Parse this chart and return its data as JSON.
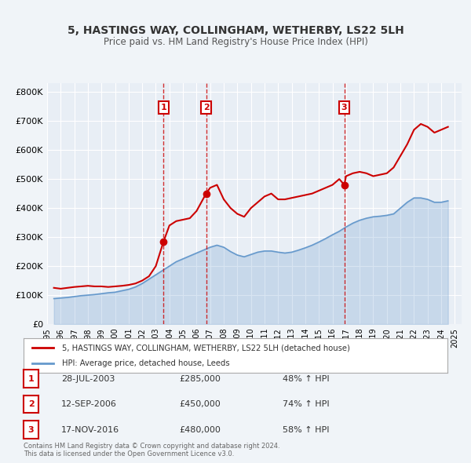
{
  "title": "5, HASTINGS WAY, COLLINGHAM, WETHERBY, LS22 5LH",
  "subtitle": "Price paid vs. HM Land Registry's House Price Index (HPI)",
  "background_color": "#f0f4f8",
  "plot_bg_color": "#e8eef5",
  "legend_line1": "5, HASTINGS WAY, COLLINGHAM, WETHERBY, LS22 5LH (detached house)",
  "legend_line2": "HPI: Average price, detached house, Leeds",
  "red_color": "#cc0000",
  "blue_color": "#6699cc",
  "transactions": [
    {
      "label": "1",
      "date": "28-JUL-2003",
      "year": 2003.57,
      "price": 285000,
      "pct": "48%",
      "dir": "↑"
    },
    {
      "label": "2",
      "date": "12-SEP-2006",
      "year": 2006.7,
      "price": 450000,
      "pct": "74%",
      "dir": "↑"
    },
    {
      "label": "3",
      "date": "17-NOV-2016",
      "year": 2016.87,
      "price": 480000,
      "pct": "58%",
      "dir": "↑"
    }
  ],
  "red_line": {
    "years": [
      1995.5,
      1996,
      1996.5,
      1997,
      1997.5,
      1998,
      1998.5,
      1999,
      1999.5,
      2000,
      2000.5,
      2001,
      2001.5,
      2002,
      2002.5,
      2003,
      2003.57,
      2004,
      2004.5,
      2005,
      2005.5,
      2006,
      2006.7,
      2007,
      2007.5,
      2008,
      2008.5,
      2009,
      2009.5,
      2010,
      2010.5,
      2011,
      2011.5,
      2012,
      2012.5,
      2013,
      2013.5,
      2014,
      2014.5,
      2015,
      2015.5,
      2016,
      2016.5,
      2016.87,
      2017,
      2017.5,
      2018,
      2018.5,
      2019,
      2019.5,
      2020,
      2020.5,
      2021,
      2021.5,
      2022,
      2022.5,
      2023,
      2023.5,
      2024,
      2024.5
    ],
    "values": [
      125000,
      122000,
      125000,
      128000,
      130000,
      132000,
      130000,
      130000,
      128000,
      130000,
      132000,
      135000,
      140000,
      150000,
      165000,
      200000,
      285000,
      340000,
      355000,
      360000,
      365000,
      390000,
      450000,
      470000,
      480000,
      430000,
      400000,
      380000,
      370000,
      400000,
      420000,
      440000,
      450000,
      430000,
      430000,
      435000,
      440000,
      445000,
      450000,
      460000,
      470000,
      480000,
      500000,
      480000,
      510000,
      520000,
      525000,
      520000,
      510000,
      515000,
      520000,
      540000,
      580000,
      620000,
      670000,
      690000,
      680000,
      660000,
      670000,
      680000
    ]
  },
  "blue_line": {
    "years": [
      1995.5,
      1996,
      1996.5,
      1997,
      1997.5,
      1998,
      1998.5,
      1999,
      1999.5,
      2000,
      2000.5,
      2001,
      2001.5,
      2002,
      2002.5,
      2003,
      2003.5,
      2004,
      2004.5,
      2005,
      2005.5,
      2006,
      2006.5,
      2007,
      2007.5,
      2008,
      2008.5,
      2009,
      2009.5,
      2010,
      2010.5,
      2011,
      2011.5,
      2012,
      2012.5,
      2013,
      2013.5,
      2014,
      2014.5,
      2015,
      2015.5,
      2016,
      2016.5,
      2017,
      2017.5,
      2018,
      2018.5,
      2019,
      2019.5,
      2020,
      2020.5,
      2021,
      2021.5,
      2022,
      2022.5,
      2023,
      2023.5,
      2024,
      2024.5
    ],
    "values": [
      88000,
      90000,
      92000,
      95000,
      98000,
      100000,
      102000,
      105000,
      108000,
      110000,
      115000,
      120000,
      128000,
      140000,
      155000,
      170000,
      185000,
      200000,
      215000,
      225000,
      235000,
      245000,
      255000,
      265000,
      272000,
      265000,
      250000,
      238000,
      232000,
      240000,
      248000,
      252000,
      252000,
      248000,
      245000,
      248000,
      255000,
      263000,
      272000,
      283000,
      295000,
      308000,
      320000,
      335000,
      348000,
      358000,
      365000,
      370000,
      372000,
      375000,
      380000,
      400000,
      420000,
      435000,
      435000,
      430000,
      420000,
      420000,
      425000
    ],
    "fill_alpha": 0.25
  },
  "ylim": [
    0,
    830000
  ],
  "xlim": [
    1995,
    2025.5
  ],
  "yticks": [
    0,
    100000,
    200000,
    300000,
    400000,
    500000,
    600000,
    700000,
    800000
  ],
  "ytick_labels": [
    "£0",
    "£100K",
    "£200K",
    "£300K",
    "£400K",
    "£500K",
    "£600K",
    "£700K",
    "£800K"
  ],
  "xticks": [
    1995,
    1996,
    1997,
    1998,
    1999,
    2000,
    2001,
    2002,
    2003,
    2004,
    2005,
    2006,
    2007,
    2008,
    2009,
    2010,
    2011,
    2012,
    2013,
    2014,
    2015,
    2016,
    2017,
    2018,
    2019,
    2020,
    2021,
    2022,
    2023,
    2024,
    2025
  ],
  "footnote": "Contains HM Land Registry data © Crown copyright and database right 2024.\nThis data is licensed under the Open Government Licence v3.0."
}
